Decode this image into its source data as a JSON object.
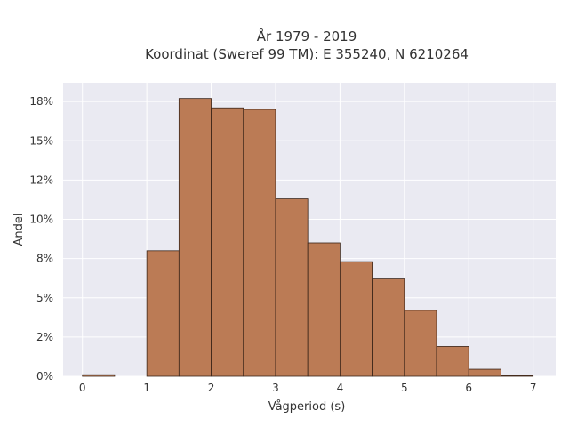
{
  "chart_data": {
    "type": "bar",
    "title_lines": [
      "År 1979 - 2019",
      "Koordinat (Sweref 99 TM): E 355240, N 6210264"
    ],
    "xlabel": "Vågperiod (s)",
    "ylabel": "Andel",
    "bin_edges": [
      0,
      0.5,
      1,
      1.5,
      2,
      2.5,
      3,
      3.5,
      4,
      4.5,
      5,
      5.5,
      6,
      6.5,
      7
    ],
    "values": [
      0.1,
      0.0,
      8.0,
      17.7,
      17.1,
      17.0,
      11.3,
      8.5,
      7.3,
      6.2,
      4.2,
      1.9,
      0.45,
      0.05
    ],
    "xlim": [
      -0.3,
      7.35
    ],
    "ylim": [
      0,
      18.7
    ],
    "x_ticks": [
      0,
      1,
      2,
      3,
      4,
      5,
      6,
      7
    ],
    "x_tick_labels": [
      "0",
      "1",
      "2",
      "3",
      "4",
      "5",
      "6",
      "7"
    ],
    "y_ticks": [
      0,
      2.5,
      5,
      7.5,
      10,
      12.5,
      15,
      17.5
    ],
    "y_tick_labels": [
      "0%",
      "2%",
      "5%",
      "8%",
      "10%",
      "12%",
      "15%",
      "18%"
    ],
    "grid": true,
    "colors": {
      "bar_fill": "#bb7b55",
      "bar_edge": "#3a2418",
      "plot_background": "#eaeaf2",
      "grid": "#ffffff",
      "text": "#333333"
    }
  }
}
